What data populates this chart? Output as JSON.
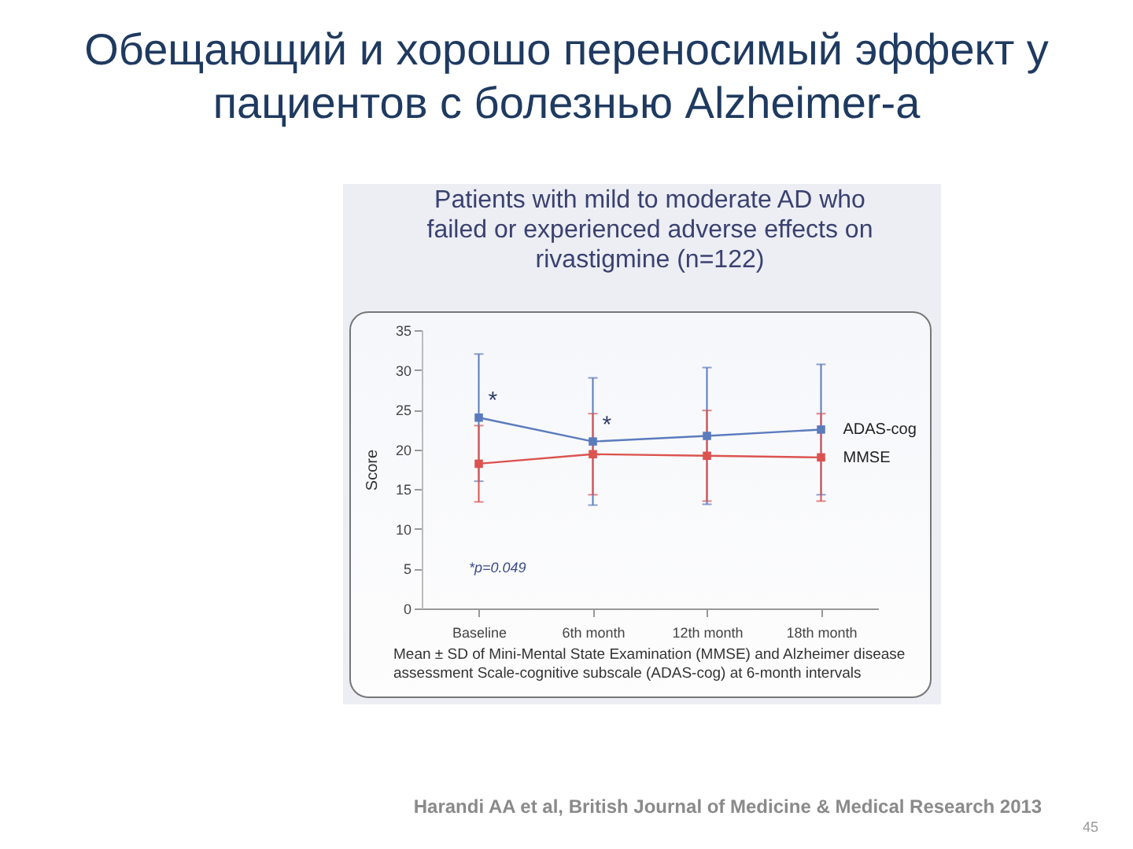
{
  "chart_data": {
    "type": "line",
    "title": "Обещающий и хорошо переносимый эффект у пациентов с болезнью Alzheimer-а",
    "subtitle": "Patients with mild to moderate AD who failed or experienced adverse effects on rivastigmine (n=122)",
    "ylabel": "Score",
    "categories": [
      "Baseline",
      "6th month",
      "12th month",
      "18th month"
    ],
    "series": [
      {
        "name": "ADAS-cog",
        "color": "#5b7bbd",
        "values": [
          24.0,
          21.0,
          21.7,
          22.5
        ],
        "errors": [
          8,
          8,
          8.6,
          8.2
        ]
      },
      {
        "name": "MMSE",
        "color": "#dc5350",
        "values": [
          18.2,
          19.4,
          19.2,
          19.0
        ],
        "errors": [
          4.8,
          5.1,
          5.7,
          5.5
        ]
      }
    ],
    "ylim": [
      0,
      35
    ],
    "yticks": [
      0,
      5,
      10,
      15,
      20,
      25,
      30,
      35
    ],
    "marker": "square",
    "line_style": "solid",
    "grid": false,
    "legend": false,
    "annotations": [
      {
        "text": "*",
        "x": "Baseline",
        "y": 24.0
      },
      {
        "text": "*",
        "x": "6th month",
        "y": 21.0
      },
      "*p=0.049",
      "Mean ± SD of Mini-Mental State Examination (MMSE) and Alzheimer disease assessment Scale-cognitive subscale (ADAS-cog) at 6-month intervals",
      "Harandi AA et al, British Journal of Medicine & Medical Research 2013",
      "45"
    ]
  }
}
